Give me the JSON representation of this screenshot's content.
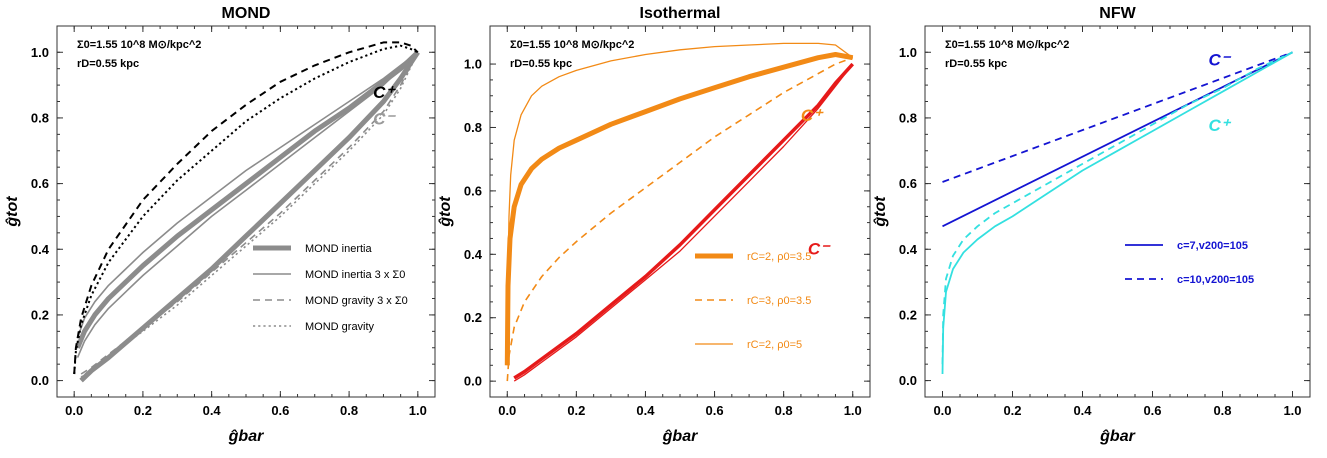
{
  "chart_data": [
    {
      "type": "line",
      "title": "MOND",
      "xlabel": "ĝbar",
      "ylabel": "ĝtot",
      "xlim": [
        -0.05,
        1.05
      ],
      "ylim": [
        -0.05,
        1.08
      ],
      "xticks": [
        "0.0",
        "0.2",
        "0.4",
        "0.6",
        "0.8",
        "1.0"
      ],
      "yticks": [
        "0.0",
        "0.2",
        "0.4",
        "0.6",
        "0.8",
        "1.0"
      ],
      "info_lines": [
        "Σ0=1.55 10^8 M⊙/kpc^2",
        "rD=0.55 kpc"
      ],
      "curve_labels": [
        {
          "text": "C⁺",
          "color": "#000000",
          "x": 0.87,
          "y": 0.86
        },
        {
          "text": "C⁻",
          "color": "#9a9a9a",
          "x": 0.87,
          "y": 0.78
        }
      ],
      "legend_position": "lower-right",
      "series": [
        {
          "name": "MOND inertia",
          "color": "#8c8c8c",
          "dash": "solid",
          "width": 5,
          "in_legend": true,
          "x": [
            0.01,
            0.03,
            0.06,
            0.1,
            0.15,
            0.2,
            0.3,
            0.4,
            0.5,
            0.6,
            0.7,
            0.8,
            0.9,
            0.95,
            1.0
          ],
          "y": [
            0.1,
            0.15,
            0.2,
            0.25,
            0.3,
            0.35,
            0.44,
            0.52,
            0.6,
            0.68,
            0.76,
            0.83,
            0.91,
            0.95,
            1.0
          ]
        },
        {
          "name": "MOND inertia",
          "color": "#8c8c8c",
          "dash": "solid",
          "width": 5,
          "in_legend": false,
          "x": [
            0.02,
            0.05,
            0.1,
            0.2,
            0.3,
            0.4,
            0.5,
            0.6,
            0.7,
            0.8,
            0.9,
            0.95,
            1.0
          ],
          "y": [
            0.0,
            0.03,
            0.07,
            0.16,
            0.25,
            0.34,
            0.44,
            0.54,
            0.64,
            0.74,
            0.85,
            0.92,
            1.0
          ]
        },
        {
          "name": "MOND inertia 3 x Σ0",
          "color": "#8c8c8c",
          "dash": "solid",
          "width": 1.6,
          "in_legend": true,
          "x": [
            0.01,
            0.03,
            0.06,
            0.1,
            0.15,
            0.2,
            0.3,
            0.4,
            0.5,
            0.6,
            0.7,
            0.8,
            0.9,
            0.95,
            1.0
          ],
          "y": [
            0.07,
            0.12,
            0.17,
            0.22,
            0.27,
            0.32,
            0.41,
            0.5,
            0.58,
            0.66,
            0.74,
            0.82,
            0.9,
            0.95,
            1.0
          ]
        },
        {
          "name": "MOND inertia 3 x Σ0",
          "color": "#8c8c8c",
          "dash": "solid",
          "width": 1.6,
          "in_legend": false,
          "x": [
            0.01,
            0.03,
            0.06,
            0.1,
            0.15,
            0.2,
            0.3,
            0.4,
            0.5,
            0.6,
            0.7,
            0.8,
            0.9,
            0.95,
            1.0
          ],
          "y": [
            0.13,
            0.19,
            0.24,
            0.29,
            0.34,
            0.39,
            0.48,
            0.56,
            0.64,
            0.71,
            0.78,
            0.85,
            0.92,
            0.96,
            1.0
          ]
        },
        {
          "name": "MOND gravity 3 x Σ0",
          "color": "#8c8c8c",
          "dash": "dashed",
          "width": 1.6,
          "in_legend": true,
          "x": [
            0.02,
            0.05,
            0.1,
            0.2,
            0.3,
            0.4,
            0.5,
            0.6,
            0.7,
            0.8,
            0.9,
            0.95,
            1.0
          ],
          "y": [
            0.02,
            0.04,
            0.08,
            0.16,
            0.24,
            0.33,
            0.42,
            0.51,
            0.61,
            0.71,
            0.82,
            0.9,
            1.0
          ]
        },
        {
          "name": "MOND gravity",
          "color": "#8c8c8c",
          "dash": "dotted",
          "width": 1.6,
          "in_legend": true,
          "x": [
            0.02,
            0.05,
            0.1,
            0.2,
            0.3,
            0.4,
            0.5,
            0.6,
            0.7,
            0.8,
            0.9,
            0.95,
            1.0
          ],
          "y": [
            0.01,
            0.035,
            0.075,
            0.15,
            0.23,
            0.32,
            0.41,
            0.5,
            0.6,
            0.7,
            0.81,
            0.89,
            1.0
          ]
        },
        {
          "name": "C+ dashed",
          "color": "#000000",
          "dash": "dashed",
          "width": 2,
          "in_legend": false,
          "x": [
            0.0,
            0.005,
            0.02,
            0.05,
            0.1,
            0.2,
            0.3,
            0.4,
            0.5,
            0.6,
            0.7,
            0.8,
            0.9,
            0.95,
            0.98,
            1.0
          ],
          "y": [
            0.02,
            0.1,
            0.19,
            0.29,
            0.4,
            0.55,
            0.66,
            0.76,
            0.84,
            0.91,
            0.96,
            1.0,
            1.03,
            1.03,
            1.02,
            1.0
          ]
        },
        {
          "name": "C+ dotted",
          "color": "#000000",
          "dash": "dotted",
          "width": 2,
          "in_legend": false,
          "x": [
            0.0,
            0.005,
            0.02,
            0.05,
            0.1,
            0.2,
            0.3,
            0.4,
            0.5,
            0.6,
            0.7,
            0.8,
            0.9,
            0.95,
            0.98,
            1.0
          ],
          "y": [
            0.02,
            0.09,
            0.17,
            0.26,
            0.36,
            0.5,
            0.61,
            0.7,
            0.79,
            0.86,
            0.92,
            0.97,
            1.01,
            1.02,
            1.01,
            1.0
          ]
        }
      ]
    },
    {
      "type": "line",
      "title": "Isothermal",
      "xlabel": "ĝbar",
      "ylabel": "ĝtot",
      "xlim": [
        -0.05,
        1.05
      ],
      "ylim": [
        -0.05,
        1.12
      ],
      "xticks": [
        "0.0",
        "0.2",
        "0.4",
        "0.6",
        "0.8",
        "1.0"
      ],
      "yticks": [
        "0.0",
        "0.2",
        "0.4",
        "0.6",
        "0.8",
        "1.0"
      ],
      "info_lines": [
        "Σ0=1.55 10^8 M⊙/kpc^2",
        "rD=0.55 kpc"
      ],
      "curve_labels": [
        {
          "text": "C⁺",
          "color": "#f28a16",
          "x": 0.85,
          "y": 0.82
        },
        {
          "text": "C⁻",
          "color": "#e61a1a",
          "x": 0.87,
          "y": 0.4
        }
      ],
      "legend_position": "lower-right",
      "series": [
        {
          "name": "rC=2,  ρ0=3.5",
          "color": "#f28a16",
          "dash": "solid",
          "width": 5,
          "in_legend": true,
          "x": [
            0.0,
            0.002,
            0.008,
            0.02,
            0.04,
            0.07,
            0.1,
            0.15,
            0.2,
            0.3,
            0.4,
            0.5,
            0.6,
            0.7,
            0.8,
            0.9,
            0.95,
            1.0
          ],
          "y": [
            0.05,
            0.3,
            0.45,
            0.55,
            0.62,
            0.67,
            0.7,
            0.735,
            0.76,
            0.81,
            0.85,
            0.89,
            0.925,
            0.96,
            0.99,
            1.02,
            1.03,
            1.02
          ]
        },
        {
          "name": "rC=3,  ρ0=3.5",
          "color": "#f28a16",
          "dash": "dashed",
          "width": 1.6,
          "in_legend": true,
          "x": [
            0.0,
            0.005,
            0.02,
            0.05,
            0.1,
            0.15,
            0.2,
            0.3,
            0.4,
            0.5,
            0.6,
            0.7,
            0.8,
            0.9,
            0.95,
            1.0
          ],
          "y": [
            0.0,
            0.08,
            0.17,
            0.25,
            0.33,
            0.39,
            0.44,
            0.53,
            0.61,
            0.69,
            0.77,
            0.84,
            0.91,
            0.97,
            1.0,
            1.02
          ]
        },
        {
          "name": "rC=2,  ρ0=5",
          "color": "#f28a16",
          "dash": "solid",
          "width": 1.3,
          "in_legend": true,
          "x": [
            0.0,
            0.002,
            0.005,
            0.01,
            0.02,
            0.04,
            0.07,
            0.1,
            0.15,
            0.2,
            0.3,
            0.4,
            0.5,
            0.6,
            0.7,
            0.8,
            0.9,
            0.95,
            1.0
          ],
          "y": [
            0.05,
            0.35,
            0.52,
            0.65,
            0.76,
            0.84,
            0.9,
            0.93,
            0.96,
            0.98,
            1.01,
            1.03,
            1.045,
            1.055,
            1.06,
            1.065,
            1.065,
            1.06,
            1.02
          ]
        },
        {
          "name": "C- thick",
          "color": "#e61a1a",
          "dash": "solid",
          "width": 3.5,
          "in_legend": false,
          "x": [
            0.02,
            0.05,
            0.1,
            0.2,
            0.3,
            0.4,
            0.5,
            0.6,
            0.7,
            0.8,
            0.9,
            0.95,
            1.0
          ],
          "y": [
            0.01,
            0.03,
            0.07,
            0.15,
            0.24,
            0.33,
            0.43,
            0.54,
            0.65,
            0.76,
            0.87,
            0.94,
            1.0
          ]
        },
        {
          "name": "C- thin",
          "color": "#e61a1a",
          "dash": "solid",
          "width": 1.3,
          "in_legend": false,
          "x": [
            0.02,
            0.05,
            0.1,
            0.2,
            0.3,
            0.4,
            0.5,
            0.6,
            0.7,
            0.8,
            0.9,
            0.95,
            1.0
          ],
          "y": [
            0.0,
            0.02,
            0.06,
            0.14,
            0.23,
            0.32,
            0.41,
            0.52,
            0.63,
            0.74,
            0.86,
            0.93,
            1.0
          ]
        }
      ]
    },
    {
      "type": "line",
      "title": "NFW",
      "xlabel": "ĝbar",
      "ylabel": "ĝtot",
      "xlim": [
        -0.05,
        1.05
      ],
      "ylim": [
        -0.05,
        1.08
      ],
      "xticks": [
        "0.0",
        "0.2",
        "0.4",
        "0.6",
        "0.8",
        "1.0"
      ],
      "yticks": [
        "0.0",
        "0.2",
        "0.4",
        "0.6",
        "0.8",
        "1.0"
      ],
      "info_lines": [
        "Σ0=1.55 10^8 M⊙/kpc^2",
        "rD=0.55 kpc"
      ],
      "curve_labels": [
        {
          "text": "C⁻",
          "color": "#1414d2",
          "x": 0.76,
          "y": 0.96
        },
        {
          "text": "C⁺",
          "color": "#33e0e0",
          "x": 0.76,
          "y": 0.76
        }
      ],
      "legend_position": "right",
      "series": [
        {
          "name": "c=7,v200=105",
          "color": "#1414d2",
          "dash": "solid",
          "width": 1.8,
          "in_legend": true,
          "x": [
            0.0,
            1.0
          ],
          "y": [
            0.47,
            1.0
          ]
        },
        {
          "name": "c=10,v200=105",
          "color": "#1414d2",
          "dash": "dashed",
          "width": 1.8,
          "in_legend": true,
          "x": [
            0.0,
            1.0
          ],
          "y": [
            0.605,
            1.0
          ]
        },
        {
          "name": "C+ solid",
          "color": "#33e0e0",
          "dash": "solid",
          "width": 1.8,
          "in_legend": false,
          "x": [
            0.0,
            0.002,
            0.01,
            0.03,
            0.06,
            0.1,
            0.15,
            0.2,
            0.3,
            0.4,
            0.5,
            0.6,
            0.7,
            0.8,
            0.9,
            1.0
          ],
          "y": [
            0.02,
            0.16,
            0.27,
            0.34,
            0.39,
            0.43,
            0.47,
            0.5,
            0.57,
            0.64,
            0.7,
            0.76,
            0.82,
            0.88,
            0.94,
            1.0
          ]
        },
        {
          "name": "C+ dashed",
          "color": "#33e0e0",
          "dash": "dashed",
          "width": 1.8,
          "in_legend": false,
          "x": [
            0.0,
            0.002,
            0.01,
            0.03,
            0.06,
            0.1,
            0.15,
            0.2,
            0.3,
            0.4,
            0.5,
            0.6,
            0.7,
            0.8,
            0.9,
            1.0
          ],
          "y": [
            0.05,
            0.2,
            0.31,
            0.38,
            0.43,
            0.47,
            0.51,
            0.54,
            0.6,
            0.66,
            0.72,
            0.78,
            0.84,
            0.89,
            0.95,
            1.0
          ]
        }
      ]
    }
  ]
}
